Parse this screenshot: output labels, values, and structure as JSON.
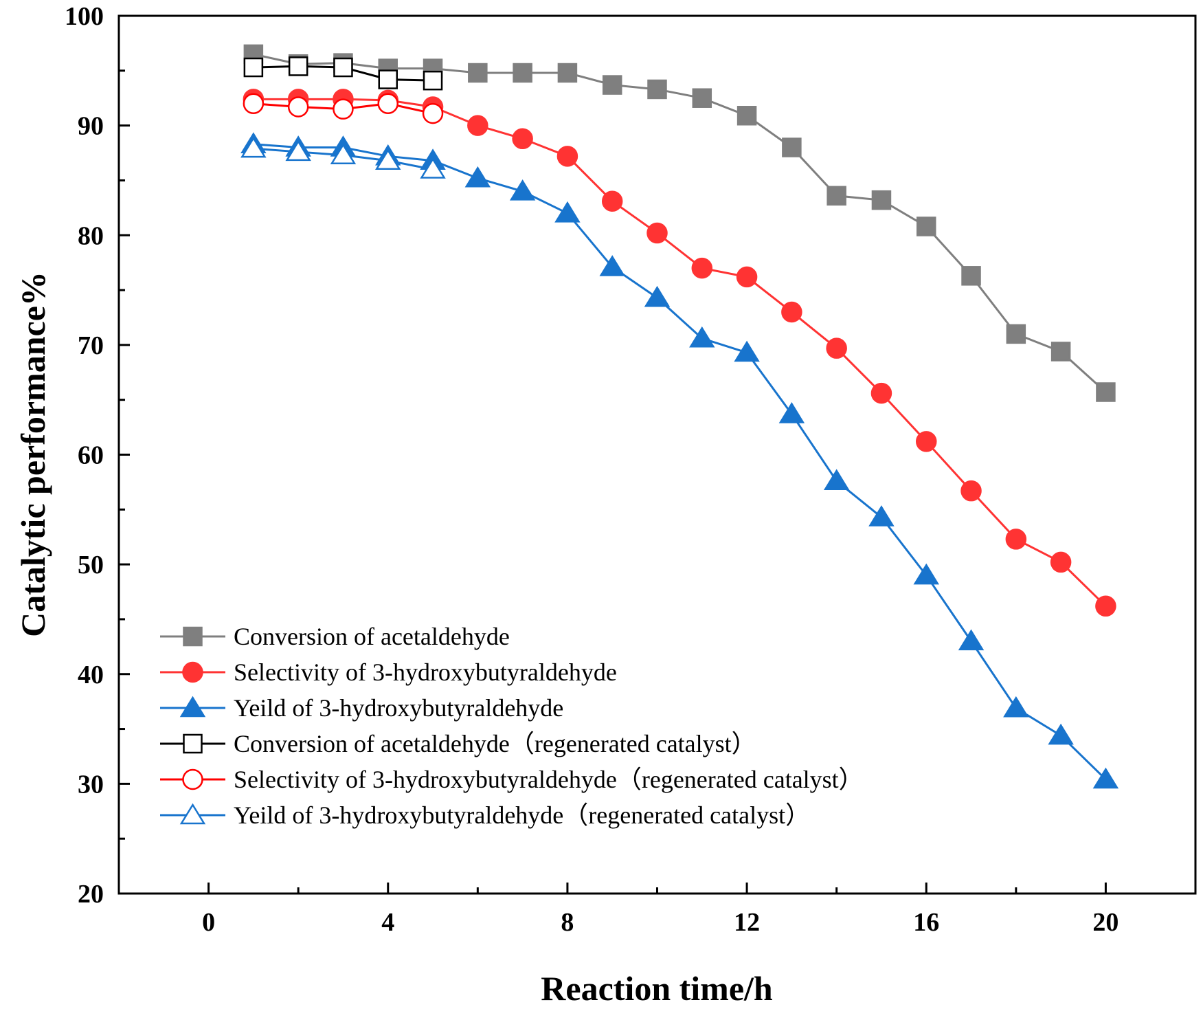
{
  "chart_data": {
    "type": "line",
    "title": "",
    "xlabel": "Reaction time/h",
    "ylabel": "Catalytic performance%",
    "xlim": [
      -2,
      22
    ],
    "ylim": [
      20,
      100
    ],
    "x_ticks": [
      0,
      4,
      8,
      12,
      16,
      20
    ],
    "x_tick_labels": [
      "0",
      "4",
      "8",
      "12",
      "16",
      "20"
    ],
    "y_ticks": [
      20,
      30,
      40,
      50,
      60,
      70,
      80,
      90,
      100
    ],
    "y_tick_labels": [
      "20",
      "30",
      "40",
      "50",
      "60",
      "70",
      "80",
      "90",
      "100"
    ],
    "grid": false,
    "legend_position": "bottom-left",
    "series": [
      {
        "name": "Conversion of acetaldehyde",
        "color": "#7f7f7f",
        "marker": "square",
        "filled": true,
        "x": [
          1,
          2,
          3,
          4,
          5,
          6,
          7,
          8,
          9,
          10,
          11,
          12,
          13,
          14,
          15,
          16,
          17,
          18,
          19,
          20
        ],
        "y": [
          96.5,
          95.6,
          95.7,
          95.2,
          95.2,
          94.8,
          94.8,
          94.8,
          93.7,
          93.3,
          92.5,
          90.9,
          88.0,
          83.6,
          83.2,
          80.8,
          76.3,
          71.0,
          69.4,
          65.7
        ]
      },
      {
        "name": "Selectivity of 3-hydroxybutyraldehyde",
        "color": "#ff3333",
        "marker": "circle",
        "filled": true,
        "x": [
          1,
          2,
          3,
          4,
          5,
          6,
          7,
          8,
          9,
          10,
          11,
          12,
          13,
          14,
          15,
          16,
          17,
          18,
          19,
          20
        ],
        "y": [
          92.4,
          92.4,
          92.4,
          92.3,
          91.7,
          90.0,
          88.8,
          87.2,
          83.1,
          80.2,
          77.0,
          76.2,
          73.0,
          69.7,
          65.6,
          61.2,
          56.7,
          52.3,
          50.2,
          46.2
        ]
      },
      {
        "name": "Yeild of 3-hydroxybutyraldehyde",
        "color": "#1874cd",
        "marker": "triangle",
        "filled": true,
        "x": [
          1,
          2,
          3,
          4,
          5,
          6,
          7,
          8,
          9,
          10,
          11,
          12,
          13,
          14,
          15,
          16,
          17,
          18,
          19,
          20
        ],
        "y": [
          88.3,
          88.0,
          88.0,
          87.2,
          86.8,
          85.2,
          84.0,
          82.0,
          77.1,
          74.3,
          70.6,
          69.3,
          63.7,
          57.6,
          54.3,
          49.0,
          43.0,
          36.9,
          34.4,
          30.4
        ]
      },
      {
        "name": "Conversion of acetaldehyde（regenerated catalyst）",
        "color": "#000000",
        "marker": "square",
        "filled": false,
        "x": [
          1,
          2,
          3,
          4,
          5
        ],
        "y": [
          95.3,
          95.4,
          95.3,
          94.2,
          94.1
        ]
      },
      {
        "name": "Selectivity of 3-hydroxybutyraldehyde（regenerated catalyst）",
        "color": "#ff0000",
        "marker": "circle",
        "filled": false,
        "x": [
          1,
          2,
          3,
          4,
          5
        ],
        "y": [
          92.0,
          91.7,
          91.5,
          92.0,
          91.1
        ]
      },
      {
        "name": "Yeild of 3-hydroxybutyraldehyde（regenerated catalyst）",
        "color": "#1874cd",
        "marker": "triangle",
        "filled": false,
        "x": [
          1,
          2,
          3,
          4,
          5
        ],
        "y": [
          87.9,
          87.6,
          87.3,
          86.8,
          86.0
        ]
      }
    ]
  }
}
